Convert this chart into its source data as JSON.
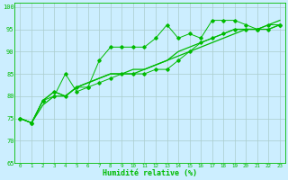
{
  "title": "",
  "xlabel": "Humidité relative (%)",
  "ylabel": "",
  "xlim": [
    -0.5,
    23.5
  ],
  "ylim": [
    65,
    101
  ],
  "yticks": [
    65,
    70,
    75,
    80,
    85,
    90,
    95,
    100
  ],
  "xticks": [
    0,
    1,
    2,
    3,
    4,
    5,
    6,
    7,
    8,
    9,
    10,
    11,
    12,
    13,
    14,
    15,
    16,
    17,
    18,
    19,
    20,
    21,
    22,
    23
  ],
  "bg_color": "#cceeff",
  "grid_color": "#aacccc",
  "line_color": "#00bb00",
  "series": [
    [
      75,
      74,
      79,
      80,
      85,
      81,
      82,
      88,
      91,
      91,
      91,
      91,
      93,
      96,
      93,
      94,
      93,
      97,
      97,
      97,
      96,
      95,
      96,
      96
    ],
    [
      75,
      74,
      79,
      81,
      80,
      82,
      82,
      83,
      84,
      85,
      85,
      85,
      86,
      86,
      88,
      90,
      92,
      93,
      94,
      95,
      95,
      95,
      95,
      96
    ],
    [
      75,
      74,
      79,
      81,
      80,
      82,
      83,
      84,
      85,
      85,
      85,
      86,
      87,
      88,
      90,
      91,
      92,
      93,
      94,
      95,
      95,
      95,
      96,
      97
    ],
    [
      75,
      74,
      78,
      80,
      80,
      82,
      83,
      84,
      85,
      85,
      86,
      86,
      87,
      88,
      89,
      90,
      91,
      92,
      93,
      94,
      95,
      95,
      95,
      96
    ]
  ]
}
